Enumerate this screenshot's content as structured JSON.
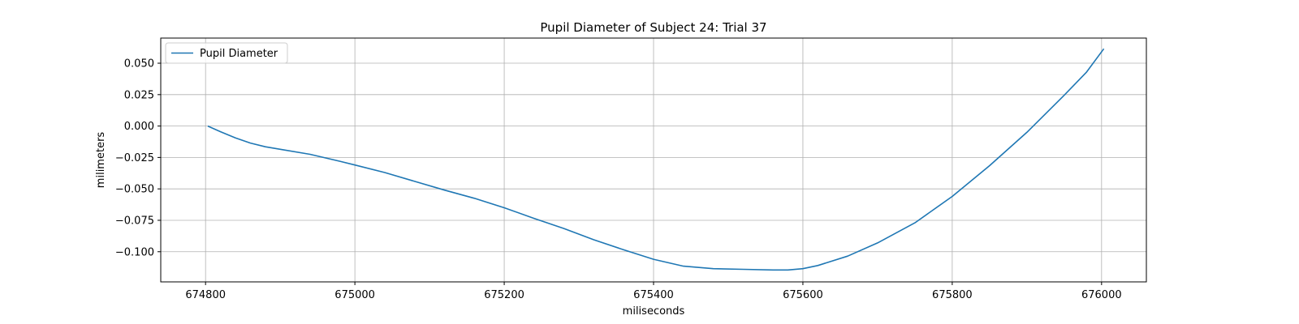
{
  "chart_data": {
    "type": "line",
    "title": "Pupil Diameter of Subject 24: Trial 37",
    "xlabel": "miliseconds",
    "ylabel": "milimeters",
    "xlim": [
      674740,
      676060
    ],
    "ylim": [
      -0.124,
      0.07
    ],
    "xticks": [
      674800,
      675000,
      675200,
      675400,
      675600,
      675800,
      676000
    ],
    "xtick_labels": [
      "674800",
      "675000",
      "675200",
      "675400",
      "675600",
      "675800",
      "676000"
    ],
    "yticks": [
      0.05,
      0.025,
      0.0,
      -0.025,
      -0.05,
      -0.075,
      -0.1
    ],
    "ytick_labels": [
      "0.050",
      "0.025",
      "0.000",
      "−0.025",
      "−0.050",
      "−0.075",
      "−0.100"
    ],
    "grid": true,
    "legend": {
      "position": "top-left"
    },
    "series": [
      {
        "name": "Pupil Diameter",
        "color": "#1f77b4",
        "x": [
          674803,
          674820,
          674840,
          674860,
          674880,
          674900,
          674940,
          674980,
          675000,
          675040,
          675080,
          675120,
          675160,
          675200,
          675240,
          675280,
          675320,
          675360,
          675400,
          675440,
          675480,
          675520,
          675560,
          675580,
          675600,
          675620,
          675660,
          675700,
          675750,
          675800,
          675850,
          675900,
          675950,
          675980,
          676003
        ],
        "values": [
          0.0,
          -0.0045,
          -0.0095,
          -0.0135,
          -0.0165,
          -0.0185,
          -0.0225,
          -0.028,
          -0.031,
          -0.037,
          -0.044,
          -0.051,
          -0.0575,
          -0.065,
          -0.0735,
          -0.0815,
          -0.0905,
          -0.0985,
          -0.106,
          -0.1115,
          -0.1135,
          -0.114,
          -0.1145,
          -0.1145,
          -0.1135,
          -0.111,
          -0.1035,
          -0.093,
          -0.077,
          -0.056,
          -0.0315,
          -0.005,
          0.0245,
          0.043,
          0.0615
        ]
      }
    ]
  }
}
